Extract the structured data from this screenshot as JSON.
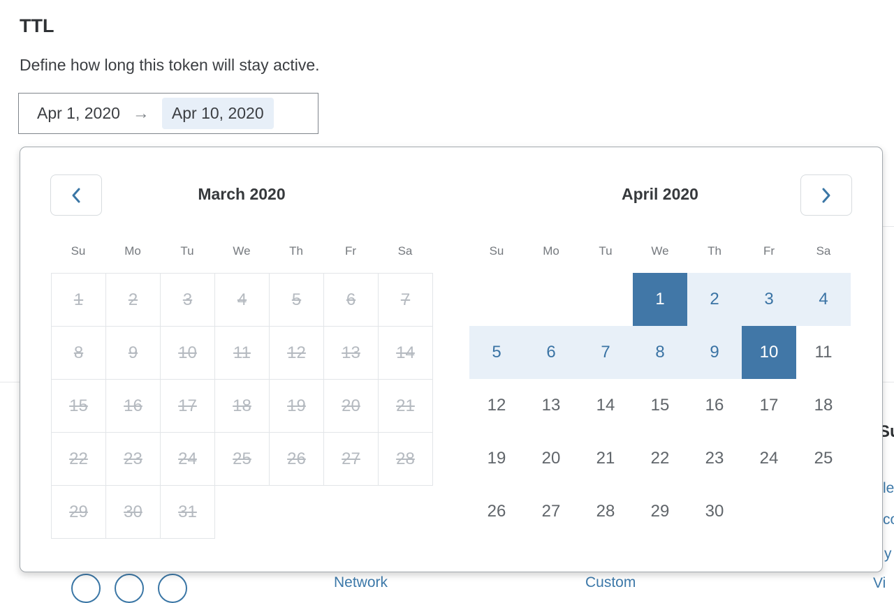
{
  "page": {
    "title": "TTL",
    "description": "Define how long this token will stay active."
  },
  "date_range_input": {
    "start": "Apr 1, 2020",
    "arrow": "→",
    "end": "Apr 10, 2020"
  },
  "icons": {
    "prev": "chevron-left",
    "next": "chevron-right",
    "range_arrow": "arrow-right"
  },
  "colors": {
    "selected_bg": "#4177a7",
    "range_bg": "#e8f0f8",
    "range_text": "#3a73a4",
    "disabled_text": "#b5bac0",
    "link_blue": "#3d79a9",
    "end_chip_bg": "#e7eff8"
  },
  "calendar": {
    "weekdays": [
      "Su",
      "Mo",
      "Tu",
      "We",
      "Th",
      "Fr",
      "Sa"
    ],
    "months": [
      {
        "key": "march-2020",
        "title": "March 2020",
        "bordered": true,
        "weeks": [
          [
            {
              "d": "1",
              "s": "disabled"
            },
            {
              "d": "2",
              "s": "disabled"
            },
            {
              "d": "3",
              "s": "disabled"
            },
            {
              "d": "4",
              "s": "disabled"
            },
            {
              "d": "5",
              "s": "disabled"
            },
            {
              "d": "6",
              "s": "disabled"
            },
            {
              "d": "7",
              "s": "disabled"
            }
          ],
          [
            {
              "d": "8",
              "s": "disabled"
            },
            {
              "d": "9",
              "s": "disabled"
            },
            {
              "d": "10",
              "s": "disabled"
            },
            {
              "d": "11",
              "s": "disabled"
            },
            {
              "d": "12",
              "s": "disabled"
            },
            {
              "d": "13",
              "s": "disabled"
            },
            {
              "d": "14",
              "s": "disabled"
            }
          ],
          [
            {
              "d": "15",
              "s": "disabled"
            },
            {
              "d": "16",
              "s": "disabled"
            },
            {
              "d": "17",
              "s": "disabled"
            },
            {
              "d": "18",
              "s": "disabled"
            },
            {
              "d": "19",
              "s": "disabled"
            },
            {
              "d": "20",
              "s": "disabled"
            },
            {
              "d": "21",
              "s": "disabled"
            }
          ],
          [
            {
              "d": "22",
              "s": "disabled"
            },
            {
              "d": "23",
              "s": "disabled"
            },
            {
              "d": "24",
              "s": "disabled"
            },
            {
              "d": "25",
              "s": "disabled"
            },
            {
              "d": "26",
              "s": "disabled"
            },
            {
              "d": "27",
              "s": "disabled"
            },
            {
              "d": "28",
              "s": "disabled"
            }
          ],
          [
            {
              "d": "29",
              "s": "disabled"
            },
            {
              "d": "30",
              "s": "disabled"
            },
            {
              "d": "31",
              "s": "disabled"
            },
            null,
            null,
            null,
            null
          ]
        ]
      },
      {
        "key": "april-2020",
        "title": "April 2020",
        "bordered": false,
        "weeks": [
          [
            null,
            null,
            null,
            {
              "d": "1",
              "s": "selected"
            },
            {
              "d": "2",
              "s": "range"
            },
            {
              "d": "3",
              "s": "range"
            },
            {
              "d": "4",
              "s": "range"
            }
          ],
          [
            {
              "d": "5",
              "s": "range"
            },
            {
              "d": "6",
              "s": "range"
            },
            {
              "d": "7",
              "s": "range"
            },
            {
              "d": "8",
              "s": "range"
            },
            {
              "d": "9",
              "s": "range"
            },
            {
              "d": "10",
              "s": "selected"
            },
            {
              "d": "11",
              "s": "normal"
            }
          ],
          [
            {
              "d": "12",
              "s": "normal"
            },
            {
              "d": "13",
              "s": "normal"
            },
            {
              "d": "14",
              "s": "normal"
            },
            {
              "d": "15",
              "s": "normal"
            },
            {
              "d": "16",
              "s": "normal"
            },
            {
              "d": "17",
              "s": "normal"
            },
            {
              "d": "18",
              "s": "normal"
            }
          ],
          [
            {
              "d": "19",
              "s": "normal"
            },
            {
              "d": "20",
              "s": "normal"
            },
            {
              "d": "21",
              "s": "normal"
            },
            {
              "d": "22",
              "s": "normal"
            },
            {
              "d": "23",
              "s": "normal"
            },
            {
              "d": "24",
              "s": "normal"
            },
            {
              "d": "25",
              "s": "normal"
            }
          ],
          [
            {
              "d": "26",
              "s": "normal"
            },
            {
              "d": "27",
              "s": "normal"
            },
            {
              "d": "28",
              "s": "normal"
            },
            {
              "d": "29",
              "s": "normal"
            },
            {
              "d": "30",
              "s": "normal"
            },
            null,
            null
          ]
        ]
      }
    ]
  },
  "background_fragments": {
    "heading": "Su",
    "link1": "le",
    "link2": "co",
    "link3": "y",
    "link4": "Vi",
    "network_link": "Network",
    "custom_link": "Custom"
  }
}
